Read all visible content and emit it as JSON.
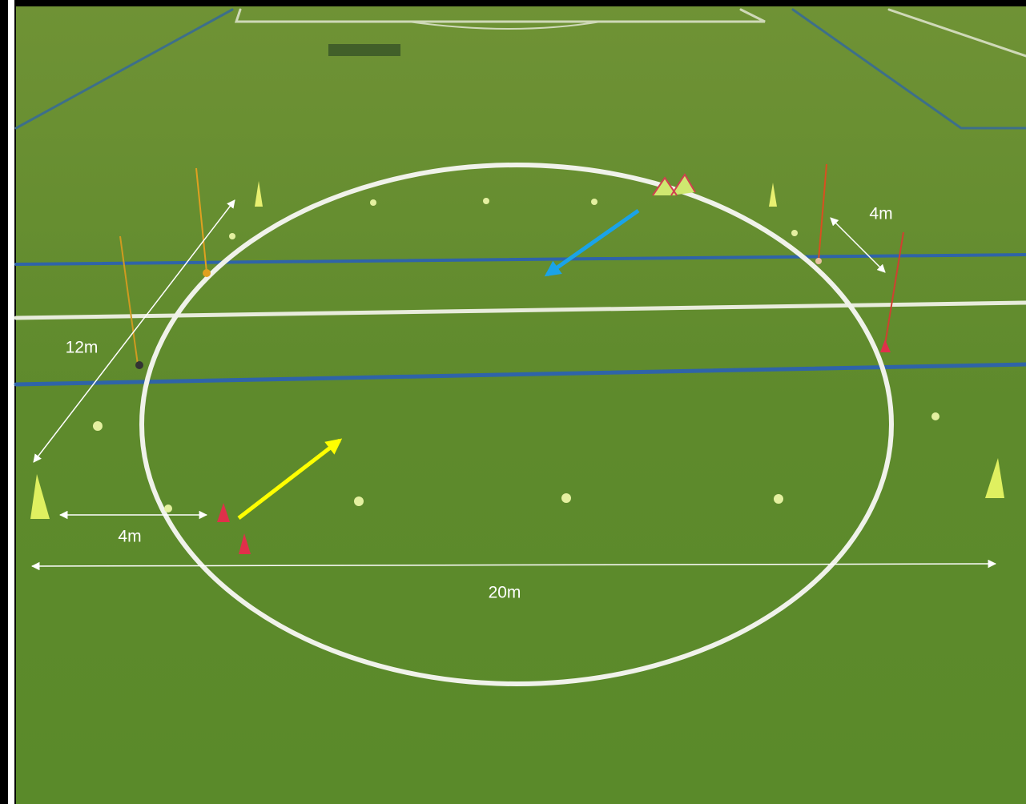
{
  "annotations": {
    "labels": [
      "12m",
      "4m",
      "4m",
      "20m"
    ]
  }
}
